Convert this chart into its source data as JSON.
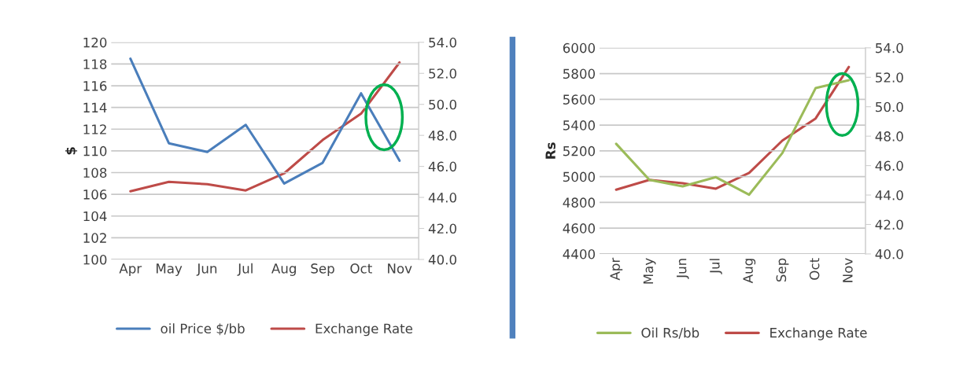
{
  "chart_data": [
    {
      "type": "line",
      "categories": [
        "Apr",
        "May",
        "Jun",
        "Jul",
        "Aug",
        "Sep",
        "Oct",
        "Nov"
      ],
      "ylabel": "$",
      "ylim": [
        100,
        120
      ],
      "yticks": [
        100,
        102,
        104,
        106,
        108,
        110,
        112,
        114,
        116,
        118,
        120
      ],
      "y2lim": [
        40,
        54
      ],
      "y2ticks": [
        {
          "value": 40,
          "label": "40.0"
        },
        {
          "value": 42,
          "label": "42.0"
        },
        {
          "value": 44,
          "label": "44.0"
        },
        {
          "value": 46,
          "label": "46.0"
        },
        {
          "value": 48,
          "label": "48.0"
        },
        {
          "value": 50,
          "label": "50.0"
        },
        {
          "value": 52,
          "label": "52.0"
        },
        {
          "value": 54,
          "label": "54.0"
        }
      ],
      "grid": "y",
      "legend": "bottom",
      "series": [
        {
          "name": "oil Price $/bb",
          "color": "#4a7ebb",
          "values": [
            118.5,
            110.7,
            109.9,
            112.4,
            107.0,
            108.9,
            115.3,
            109.1
          ]
        },
        {
          "name": "Exchange Rate",
          "color": "#be4b48",
          "axis": "y2",
          "values": [
            44.4,
            45.0,
            44.85,
            44.45,
            45.55,
            47.7,
            49.4,
            52.7
          ]
        }
      ]
    },
    {
      "type": "line",
      "categories": [
        "Apr",
        "May",
        "Jun",
        "Jul",
        "Aug",
        "Sep",
        "Oct",
        "Nov"
      ],
      "ylabel": "Rs",
      "ylim": [
        4400,
        6000
      ],
      "yticks": [
        4400,
        4600,
        4800,
        5000,
        5200,
        5400,
        5600,
        5800,
        6000
      ],
      "y2lim": [
        40,
        54
      ],
      "y2ticks": [
        {
          "value": 40,
          "label": "40.0"
        },
        {
          "value": 42,
          "label": "42.0"
        },
        {
          "value": 44,
          "label": "44.0"
        },
        {
          "value": 46,
          "label": "46.0"
        },
        {
          "value": 48,
          "label": "48.0"
        },
        {
          "value": 50,
          "label": "50.0"
        },
        {
          "value": 52,
          "label": "52.0"
        },
        {
          "value": 54,
          "label": "54.0"
        }
      ],
      "grid": "y",
      "legend": "bottom",
      "series": [
        {
          "name": "Oil Rs/bb",
          "color": "#9bbb59",
          "values": [
            5255,
            4975,
            4924,
            4996,
            4860,
            5183,
            5687,
            5749
          ]
        },
        {
          "name": "Exchange Rate",
          "color": "#be4b48",
          "axis": "y2",
          "values": [
            44.36,
            45.03,
            44.8,
            44.43,
            45.5,
            47.7,
            49.2,
            52.7
          ]
        }
      ]
    }
  ]
}
